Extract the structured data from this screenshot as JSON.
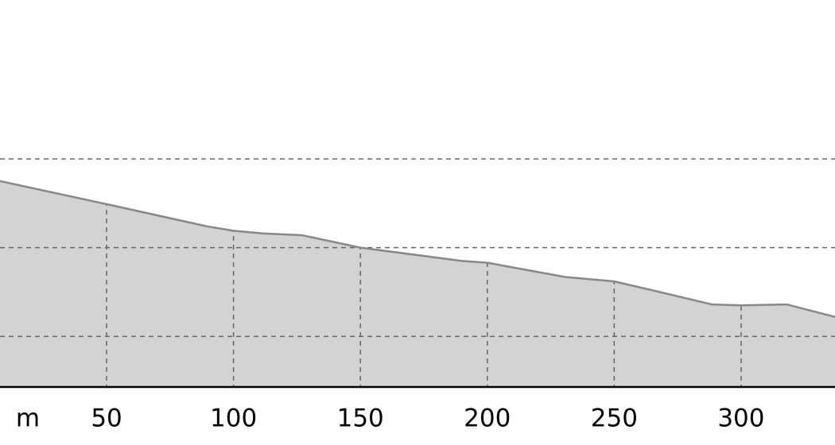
{
  "chart_data": {
    "type": "area",
    "x_label": "m",
    "x": [
      8,
      50,
      89.5,
      100,
      111.5,
      127,
      150,
      190,
      200,
      230.5,
      250,
      268,
      288.5,
      300,
      318,
      337
    ],
    "values": [
      2.75,
      2.49,
      2.24,
      2.19,
      2.16,
      2.14,
      2.0,
      1.85,
      1.83,
      1.67,
      1.62,
      1.5,
      1.36,
      1.35,
      1.36,
      1.22
    ],
    "color": "#d3d3d3",
    "line_color": "#888888",
    "xlim": [
      8,
      337
    ],
    "xticks": [
      50,
      100,
      150,
      200,
      250,
      300
    ],
    "ylim": [
      0.43,
      4.79
    ],
    "grid_lines": [
      1,
      2,
      3
    ],
    "grid": true
  }
}
